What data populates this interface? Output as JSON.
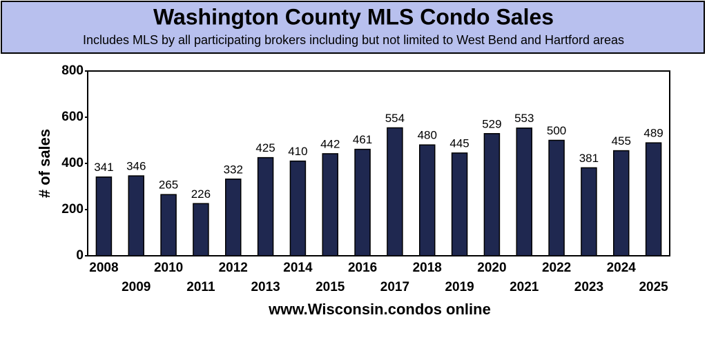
{
  "chart_data": {
    "type": "bar",
    "title": "Washington County MLS Condo Sales",
    "subtitle": "Includes MLS by all participating brokers including but not limited to West Bend and Hartford areas",
    "y_label": "# of sales",
    "x_label": "www.Wisconsin.condos online",
    "categories": [
      "2008",
      "2009",
      "2010",
      "2011",
      "2012",
      "2013",
      "2014",
      "2015",
      "2016",
      "2017",
      "2018",
      "2019",
      "2020",
      "2021",
      "2022",
      "2023",
      "2024",
      "2025"
    ],
    "values": [
      341,
      346,
      265,
      226,
      332,
      425,
      410,
      442,
      461,
      554,
      480,
      445,
      529,
      553,
      500,
      381,
      455,
      489
    ],
    "color": "#1f2850",
    "ylim": [
      0,
      800
    ],
    "yticks": [
      0,
      200,
      400,
      600,
      800
    ]
  }
}
